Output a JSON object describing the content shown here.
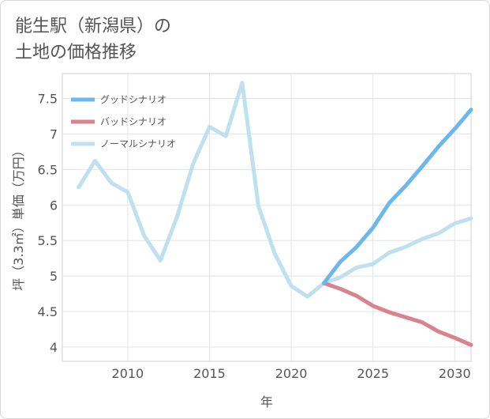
{
  "title_line1": "能生駅（新潟県）の",
  "title_line2": "土地の価格推移",
  "chart_data": {
    "type": "line",
    "title": "能生駅（新潟県）の土地の価格推移",
    "xlabel": "年",
    "ylabel": "坪（3.3㎡）単価（万円）",
    "xlim": [
      2006,
      2031
    ],
    "ylim": [
      3.8,
      7.85
    ],
    "xticks": [
      2010,
      2015,
      2020,
      2025,
      2030
    ],
    "yticks": [
      4,
      4.5,
      5,
      5.5,
      6,
      6.5,
      7,
      7.5
    ],
    "xtick_labels": [
      "2010",
      "2015",
      "2020",
      "2025",
      "2030"
    ],
    "ytick_labels": [
      "4",
      "4.5",
      "5",
      "5.5",
      "6",
      "6.5",
      "7",
      "7.5"
    ],
    "grid": true,
    "legend_position": "top-left",
    "series": [
      {
        "name": "グッドシナリオ",
        "color": "#6cb8ec",
        "x": [
          2022,
          2023,
          2024,
          2025,
          2026,
          2027,
          2028,
          2029,
          2030,
          2031
        ],
        "values": [
          4.9,
          5.2,
          5.41,
          5.68,
          6.03,
          6.27,
          6.54,
          6.82,
          7.07,
          7.34
        ]
      },
      {
        "name": "バッドシナリオ",
        "color": "#d9838e",
        "x": [
          2022,
          2023,
          2024,
          2025,
          2026,
          2027,
          2028,
          2029,
          2030,
          2031
        ],
        "values": [
          4.9,
          4.82,
          4.72,
          4.58,
          4.49,
          4.42,
          4.35,
          4.22,
          4.13,
          4.03
        ]
      },
      {
        "name": "ノーマルシナリオ",
        "color": "#bfe0ee",
        "x": [
          2007,
          2008,
          2009,
          2010,
          2011,
          2012,
          2013,
          2014,
          2015,
          2016,
          2017,
          2018,
          2019,
          2020,
          2021,
          2022,
          2023,
          2024,
          2025,
          2026,
          2027,
          2028,
          2029,
          2030,
          2031
        ],
        "values": [
          6.25,
          6.62,
          6.31,
          6.18,
          5.57,
          5.22,
          5.82,
          6.58,
          7.1,
          6.97,
          7.72,
          5.98,
          5.31,
          4.86,
          4.71,
          4.9,
          4.98,
          5.12,
          5.17,
          5.33,
          5.41,
          5.52,
          5.6,
          5.74,
          5.81
        ]
      }
    ]
  }
}
